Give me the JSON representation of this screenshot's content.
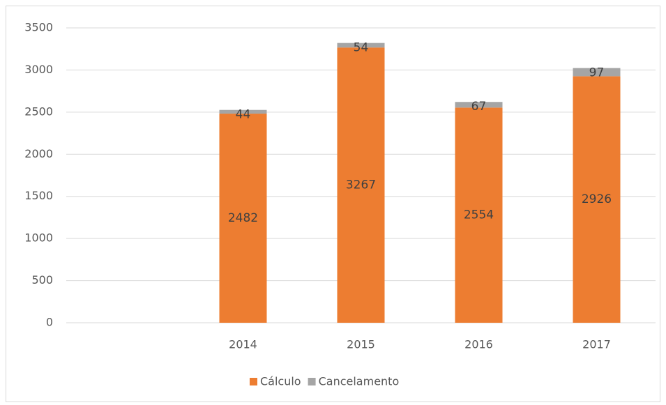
{
  "chart_data": {
    "type": "stacked_bar",
    "categories": [
      null,
      "2014",
      "2015",
      "2016",
      "2017"
    ],
    "series": [
      {
        "name": "Cálculo",
        "color": "#ed7d31",
        "values": [
          null,
          2482,
          3267,
          2554,
          2926
        ]
      },
      {
        "name": "Cancelamento",
        "color": "#a5a5a5",
        "values": [
          null,
          44,
          54,
          67,
          97
        ]
      }
    ],
    "ylim": [
      0,
      3500
    ],
    "yticks": [
      0,
      500,
      1000,
      1500,
      2000,
      2500,
      3000,
      3500
    ],
    "grid": true,
    "legend": "bottom"
  }
}
